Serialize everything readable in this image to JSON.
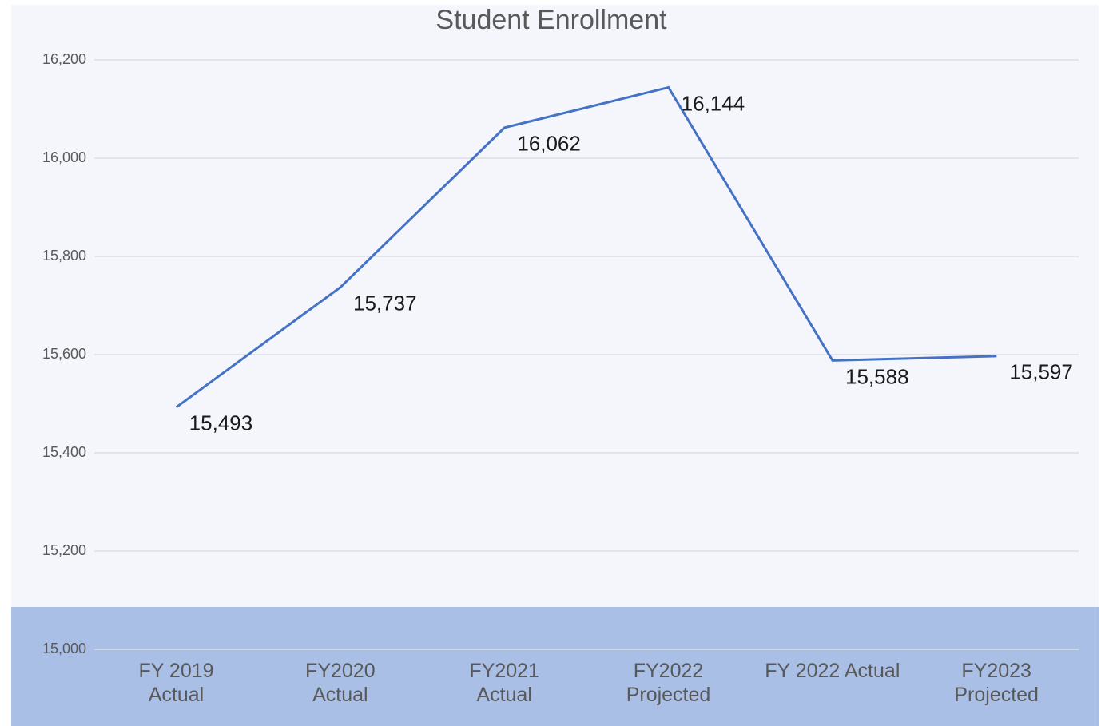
{
  "chart_data": {
    "type": "line",
    "title": "Student Enrollment",
    "categories": [
      "FY 2019\nActual",
      "FY2020\nActual",
      "FY2021\nActual",
      "FY2022\nProjected",
      "FY 2022 Actual",
      "FY2023\nProjected"
    ],
    "series": [
      {
        "name": "Student Enrollment",
        "color": "#4472c4",
        "values": [
          15493,
          15737,
          16062,
          16144,
          15588,
          15597
        ]
      }
    ],
    "ylim": [
      15000,
      16200
    ],
    "yticks": [
      {
        "value": 15000,
        "label": "15,000"
      },
      {
        "value": 15200,
        "label": "15,200"
      },
      {
        "value": 15400,
        "label": "15,400"
      },
      {
        "value": 15600,
        "label": "15,600"
      },
      {
        "value": 15800,
        "label": "15,800"
      },
      {
        "value": 16000,
        "label": "16,000"
      },
      {
        "value": 16200,
        "label": "16,200"
      }
    ],
    "value_labels": [
      "15,493",
      "15,737",
      "16,062",
      "16,144",
      "15,588",
      "15,597"
    ],
    "grid": true
  }
}
